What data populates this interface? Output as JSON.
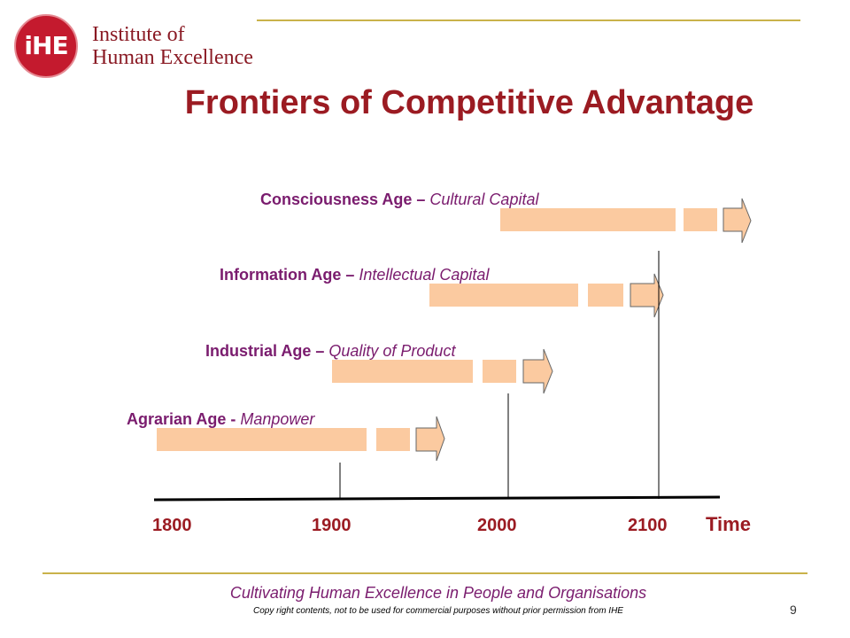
{
  "brand": {
    "logo_mark": "iHE",
    "name_line1": "Institute of",
    "name_line2": "Human Excellence"
  },
  "slide": {
    "title": "Frontiers of Competitive Advantage",
    "page_number": "9"
  },
  "ages": [
    {
      "age": "Consciousness Age –",
      "capital": "Cultural Capital"
    },
    {
      "age": "Information Age –",
      "capital": "Intellectual Capital"
    },
    {
      "age": "Industrial Age –",
      "capital": "Quality of Product"
    },
    {
      "age": "Agrarian Age -",
      "capital": "Manpower"
    }
  ],
  "timeline": {
    "years": [
      "1800",
      "1900",
      "2000",
      "2100"
    ],
    "axis_label": "Time"
  },
  "footer": {
    "tagline": "Cultivating Human Excellence in People and Organisations",
    "copyright": "Copy right contents, not to be used for commercial purposes without prior permission from IHE"
  },
  "colors": {
    "title": "#9b1b22",
    "age_label": "#7a1c6e",
    "bar_fill": "#fbcaa0",
    "rule": "#c9b24a",
    "logo": "#c41a2e"
  }
}
